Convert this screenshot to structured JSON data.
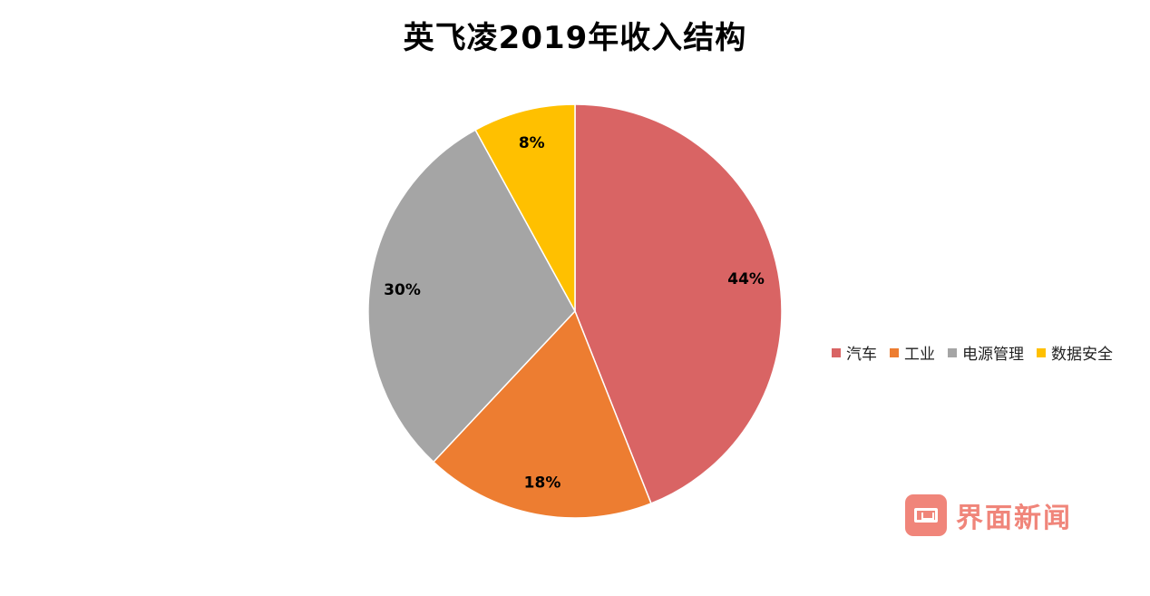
{
  "chart_data": {
    "type": "pie",
    "title": "英飞凌2019年收入结构",
    "categories": [
      "汽车",
      "工业",
      "电源管理",
      "数据安全"
    ],
    "values": [
      44,
      18,
      30,
      8
    ],
    "labels": [
      "44%",
      "18%",
      "30%",
      "8%"
    ],
    "colors": [
      "#d96464",
      "#ed7d31",
      "#a5a5a5",
      "#ffc000"
    ],
    "legend_position": "right"
  },
  "watermark": {
    "text": "界面新闻",
    "color": "#f0857a"
  }
}
